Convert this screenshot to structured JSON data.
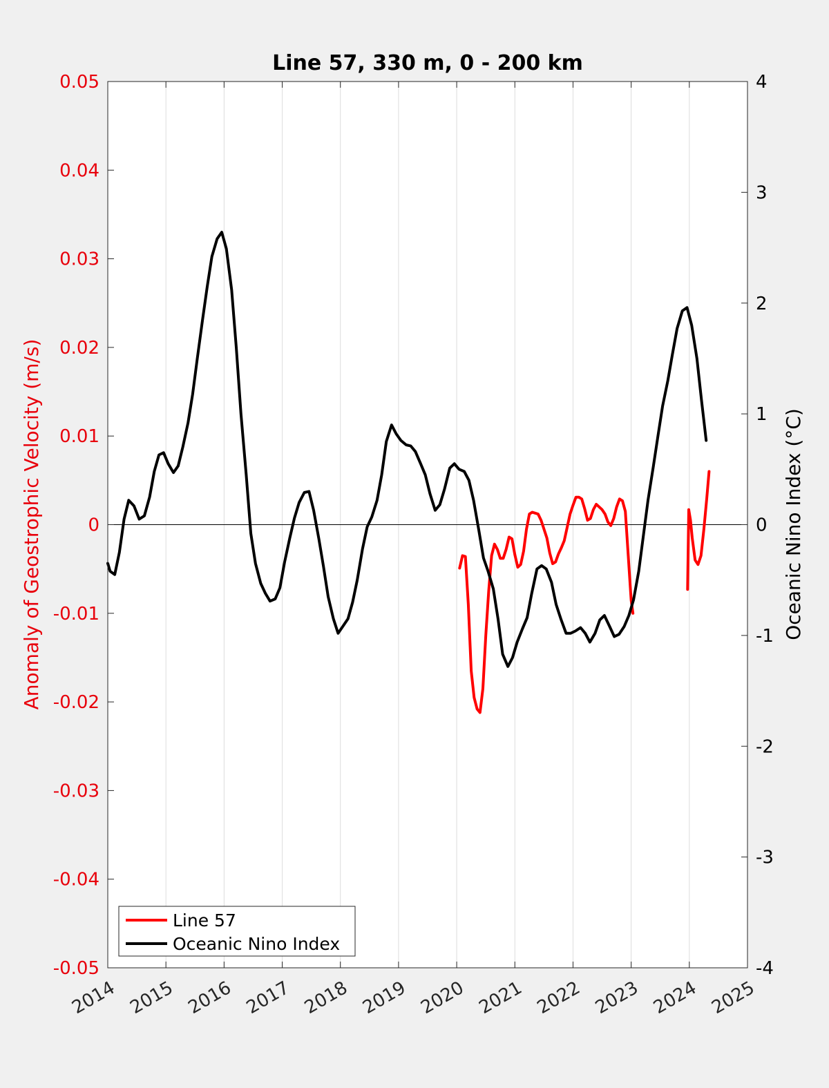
{
  "chart_data": {
    "type": "line",
    "title": "Line 57, 330 m, 0 - 200 km",
    "xlim": [
      2014,
      2025
    ],
    "x_ticks": [
      "2014",
      "2015",
      "2016",
      "2017",
      "2018",
      "2019",
      "2020",
      "2021",
      "2022",
      "2023",
      "2024",
      "2025"
    ],
    "x_grid": true,
    "left_axis": {
      "label": "Anomaly of Geostrophic Velocity (m/s)",
      "ylim": [
        -0.05,
        0.05
      ],
      "ticks": [
        "0.05",
        "0.04",
        "0.03",
        "0.02",
        "0.01",
        "0",
        "-0.01",
        "-0.02",
        "-0.03",
        "-0.04",
        "-0.05"
      ],
      "color": "#e8000b"
    },
    "right_axis": {
      "label": "Oceanic Nino Index (°C)",
      "ylim": [
        -4,
        4
      ],
      "ticks": [
        "4",
        "3",
        "2",
        "1",
        "0",
        "-1",
        "-2",
        "-3",
        "-4"
      ],
      "color": "#000000"
    },
    "zero_line": true,
    "legend": {
      "position": "bottom-left",
      "entries": [
        "Line 57",
        "Oceanic Nino Index"
      ]
    },
    "series": [
      {
        "name": "Line 57",
        "axis": "left",
        "color": "#ff0000",
        "segments": [
          [
            [
              2020.05,
              -0.0049
            ],
            [
              2020.1,
              -0.0035
            ],
            [
              2020.15,
              -0.0036
            ],
            [
              2020.2,
              -0.009
            ],
            [
              2020.25,
              -0.0165
            ],
            [
              2020.3,
              -0.0195
            ],
            [
              2020.35,
              -0.0208
            ],
            [
              2020.4,
              -0.0212
            ],
            [
              2020.45,
              -0.0185
            ],
            [
              2020.5,
              -0.0125
            ],
            [
              2020.55,
              -0.0075
            ],
            [
              2020.6,
              -0.0035
            ],
            [
              2020.65,
              -0.0022
            ],
            [
              2020.7,
              -0.0028
            ],
            [
              2020.75,
              -0.0038
            ],
            [
              2020.8,
              -0.0038
            ],
            [
              2020.85,
              -0.0028
            ],
            [
              2020.9,
              -0.0014
            ],
            [
              2020.95,
              -0.0016
            ],
            [
              2021.0,
              -0.0034
            ],
            [
              2021.05,
              -0.0048
            ],
            [
              2021.1,
              -0.0045
            ],
            [
              2021.15,
              -0.003
            ],
            [
              2021.2,
              -0.0005
            ],
            [
              2021.25,
              0.0012
            ],
            [
              2021.3,
              0.0014
            ],
            [
              2021.35,
              0.0013
            ],
            [
              2021.4,
              0.0012
            ],
            [
              2021.45,
              0.0005
            ],
            [
              2021.5,
              -0.0005
            ],
            [
              2021.55,
              -0.0015
            ],
            [
              2021.6,
              -0.0032
            ],
            [
              2021.65,
              -0.0044
            ],
            [
              2021.7,
              -0.0042
            ],
            [
              2021.75,
              -0.0033
            ],
            [
              2021.8,
              -0.0026
            ],
            [
              2021.85,
              -0.0018
            ],
            [
              2021.9,
              -0.0003
            ],
            [
              2021.95,
              0.0012
            ],
            [
              2022.0,
              0.0022
            ],
            [
              2022.05,
              0.0031
            ],
            [
              2022.1,
              0.0031
            ],
            [
              2022.15,
              0.0029
            ],
            [
              2022.2,
              0.0018
            ],
            [
              2022.25,
              0.0005
            ],
            [
              2022.3,
              0.0007
            ],
            [
              2022.35,
              0.0017
            ],
            [
              2022.4,
              0.0023
            ],
            [
              2022.45,
              0.002
            ],
            [
              2022.5,
              0.0017
            ],
            [
              2022.55,
              0.0012
            ],
            [
              2022.6,
              0.0003
            ],
            [
              2022.65,
              -0.0001
            ],
            [
              2022.7,
              0.0007
            ],
            [
              2022.75,
              0.002
            ],
            [
              2022.8,
              0.0029
            ],
            [
              2022.85,
              0.0027
            ],
            [
              2022.9,
              0.0015
            ],
            [
              2022.95,
              -0.0035
            ],
            [
              2023.0,
              -0.0085
            ],
            [
              2023.03,
              -0.01
            ]
          ],
          [
            [
              2023.97,
              -0.0073
            ],
            [
              2023.99,
              0.0017
            ],
            [
              2024.02,
              0.0005
            ],
            [
              2024.05,
              -0.0015
            ],
            [
              2024.1,
              -0.004
            ],
            [
              2024.15,
              -0.0045
            ],
            [
              2024.2,
              -0.0035
            ],
            [
              2024.25,
              -0.0005
            ],
            [
              2024.3,
              0.003
            ],
            [
              2024.34,
              0.006
            ]
          ]
        ]
      },
      {
        "name": "Oceanic Nino Index",
        "axis": "right",
        "color": "#000000",
        "segments": [
          [
            [
              2014.0,
              -0.35
            ],
            [
              2014.04,
              -0.42
            ],
            [
              2014.12,
              -0.45
            ],
            [
              2014.2,
              -0.25
            ],
            [
              2014.28,
              0.05
            ],
            [
              2014.36,
              0.22
            ],
            [
              2014.45,
              0.17
            ],
            [
              2014.54,
              0.05
            ],
            [
              2014.63,
              0.08
            ],
            [
              2014.72,
              0.25
            ],
            [
              2014.8,
              0.48
            ],
            [
              2014.88,
              0.63
            ],
            [
              2014.96,
              0.65
            ],
            [
              2015.04,
              0.55
            ],
            [
              2015.13,
              0.47
            ],
            [
              2015.21,
              0.53
            ],
            [
              2015.29,
              0.7
            ],
            [
              2015.38,
              0.92
            ],
            [
              2015.46,
              1.18
            ],
            [
              2015.54,
              1.5
            ],
            [
              2015.63,
              1.85
            ],
            [
              2015.71,
              2.15
            ],
            [
              2015.79,
              2.42
            ],
            [
              2015.88,
              2.58
            ],
            [
              2015.96,
              2.64
            ],
            [
              2016.04,
              2.49
            ],
            [
              2016.13,
              2.12
            ],
            [
              2016.21,
              1.6
            ],
            [
              2016.29,
              1.0
            ],
            [
              2016.38,
              0.45
            ],
            [
              2016.46,
              -0.08
            ],
            [
              2016.54,
              -0.35
            ],
            [
              2016.63,
              -0.53
            ],
            [
              2016.71,
              -0.62
            ],
            [
              2016.79,
              -0.69
            ],
            [
              2016.88,
              -0.67
            ],
            [
              2016.96,
              -0.57
            ],
            [
              2017.04,
              -0.34
            ],
            [
              2017.13,
              -0.12
            ],
            [
              2017.21,
              0.06
            ],
            [
              2017.29,
              0.2
            ],
            [
              2017.38,
              0.29
            ],
            [
              2017.46,
              0.3
            ],
            [
              2017.54,
              0.13
            ],
            [
              2017.63,
              -0.13
            ],
            [
              2017.71,
              -0.38
            ],
            [
              2017.79,
              -0.65
            ],
            [
              2017.88,
              -0.85
            ],
            [
              2017.96,
              -0.98
            ],
            [
              2018.04,
              -0.92
            ],
            [
              2018.13,
              -0.85
            ],
            [
              2018.21,
              -0.7
            ],
            [
              2018.29,
              -0.5
            ],
            [
              2018.38,
              -0.22
            ],
            [
              2018.46,
              -0.02
            ],
            [
              2018.54,
              0.07
            ],
            [
              2018.63,
              0.22
            ],
            [
              2018.71,
              0.45
            ],
            [
              2018.79,
              0.75
            ],
            [
              2018.88,
              0.9
            ],
            [
              2018.96,
              0.82
            ],
            [
              2019.04,
              0.76
            ],
            [
              2019.13,
              0.72
            ],
            [
              2019.21,
              0.71
            ],
            [
              2019.29,
              0.66
            ],
            [
              2019.38,
              0.55
            ],
            [
              2019.46,
              0.45
            ],
            [
              2019.54,
              0.28
            ],
            [
              2019.63,
              0.13
            ],
            [
              2019.71,
              0.18
            ],
            [
              2019.79,
              0.32
            ],
            [
              2019.88,
              0.51
            ],
            [
              2019.96,
              0.55
            ],
            [
              2020.04,
              0.5
            ],
            [
              2020.13,
              0.48
            ],
            [
              2020.21,
              0.4
            ],
            [
              2020.29,
              0.22
            ],
            [
              2020.38,
              -0.05
            ],
            [
              2020.46,
              -0.3
            ],
            [
              2020.54,
              -0.42
            ],
            [
              2020.63,
              -0.58
            ],
            [
              2020.71,
              -0.85
            ],
            [
              2020.79,
              -1.17
            ],
            [
              2020.88,
              -1.28
            ],
            [
              2020.96,
              -1.2
            ],
            [
              2021.04,
              -1.06
            ],
            [
              2021.13,
              -0.94
            ],
            [
              2021.21,
              -0.84
            ],
            [
              2021.29,
              -0.62
            ],
            [
              2021.38,
              -0.4
            ],
            [
              2021.46,
              -0.37
            ],
            [
              2021.54,
              -0.4
            ],
            [
              2021.63,
              -0.52
            ],
            [
              2021.71,
              -0.72
            ],
            [
              2021.79,
              -0.85
            ],
            [
              2021.88,
              -0.98
            ],
            [
              2021.96,
              -0.98
            ],
            [
              2022.04,
              -0.96
            ],
            [
              2022.13,
              -0.93
            ],
            [
              2022.21,
              -0.98
            ],
            [
              2022.29,
              -1.06
            ],
            [
              2022.38,
              -0.98
            ],
            [
              2022.46,
              -0.86
            ],
            [
              2022.54,
              -0.82
            ],
            [
              2022.63,
              -0.92
            ],
            [
              2022.71,
              -1.01
            ],
            [
              2022.79,
              -0.99
            ],
            [
              2022.88,
              -0.92
            ],
            [
              2022.96,
              -0.82
            ],
            [
              2023.04,
              -0.68
            ],
            [
              2023.13,
              -0.42
            ],
            [
              2023.21,
              -0.1
            ],
            [
              2023.29,
              0.22
            ],
            [
              2023.38,
              0.52
            ],
            [
              2023.46,
              0.8
            ],
            [
              2023.54,
              1.07
            ],
            [
              2023.63,
              1.3
            ],
            [
              2023.71,
              1.54
            ],
            [
              2023.79,
              1.77
            ],
            [
              2023.88,
              1.93
            ],
            [
              2023.96,
              1.96
            ],
            [
              2024.04,
              1.8
            ],
            [
              2024.13,
              1.5
            ],
            [
              2024.21,
              1.12
            ],
            [
              2024.29,
              0.76
            ]
          ]
        ]
      }
    ]
  }
}
